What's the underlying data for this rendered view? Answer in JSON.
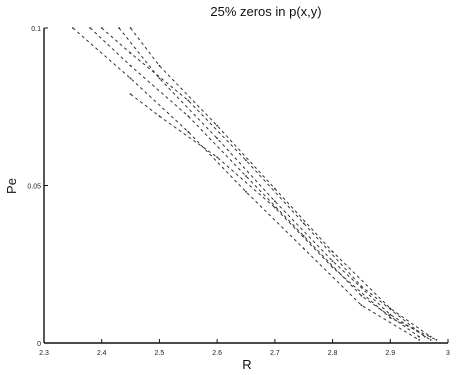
{
  "chart_data": {
    "type": "line",
    "title": "25% zeros in p(x,y)",
    "xlabel": "R",
    "ylabel": "Pe",
    "xlim": [
      2.3,
      3.0
    ],
    "ylim": [
      0,
      0.1
    ],
    "xticks": [
      "2.3",
      "2.4",
      "2.5",
      "2.6",
      "2.7",
      "2.8",
      "2.9",
      "3"
    ],
    "yticks": [
      "0",
      "0.05",
      "0.1"
    ],
    "grid": false,
    "series": [
      {
        "x": [
          2.35,
          2.45,
          2.55,
          2.65,
          2.75,
          2.85,
          2.95
        ],
        "values": [
          0.1,
          0.084,
          0.067,
          0.048,
          0.03,
          0.012,
          0.001
        ]
      },
      {
        "x": [
          2.38,
          2.45,
          2.55,
          2.65,
          2.75,
          2.85,
          2.95
        ],
        "values": [
          0.1,
          0.088,
          0.072,
          0.053,
          0.034,
          0.015,
          0.002
        ]
      },
      {
        "x": [
          2.4,
          2.45,
          2.55,
          2.65,
          2.75,
          2.85,
          2.96
        ],
        "values": [
          0.1,
          0.092,
          0.077,
          0.058,
          0.038,
          0.018,
          0.002
        ]
      },
      {
        "x": [
          2.43,
          2.5,
          2.6,
          2.7,
          2.8,
          2.9,
          2.97
        ],
        "values": [
          0.1,
          0.084,
          0.065,
          0.045,
          0.026,
          0.009,
          0.001
        ]
      },
      {
        "x": [
          2.45,
          2.5,
          2.6,
          2.7,
          2.8,
          2.9,
          2.97
        ],
        "values": [
          0.1,
          0.088,
          0.069,
          0.049,
          0.029,
          0.011,
          0.002
        ]
      },
      {
        "x": [
          2.45,
          2.5,
          2.6,
          2.7,
          2.8,
          2.9,
          2.98
        ],
        "values": [
          0.079,
          0.072,
          0.059,
          0.043,
          0.024,
          0.008,
          0.001
        ]
      }
    ]
  }
}
